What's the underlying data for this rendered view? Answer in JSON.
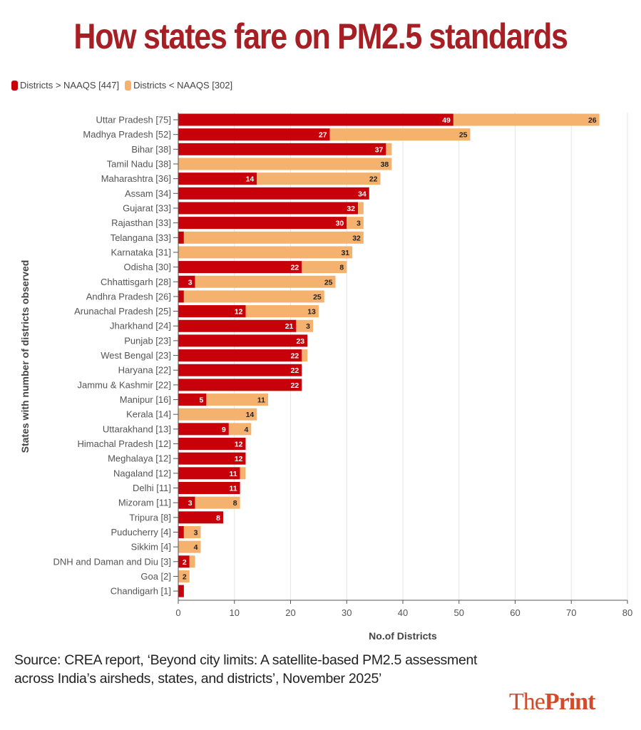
{
  "title": "How states fare on PM2.5 standards",
  "source": "Source: CREA report, ‘Beyond city limits: A satellite-based PM2.5 assessment across India’s airsheds, states, and districts’, November 2025’",
  "logo": {
    "part1": "The",
    "part2": "Print"
  },
  "colors": {
    "above": "#c8000a",
    "below": "#f5b26e",
    "title": "#a51f24"
  },
  "chart_data": {
    "type": "bar",
    "orientation": "horizontal",
    "stacked": true,
    "xlabel": "No.of Districts",
    "ylabel": "States with number of districts observed",
    "xlim": [
      0,
      80
    ],
    "xticks": [
      0,
      10,
      20,
      30,
      40,
      50,
      60,
      70,
      80
    ],
    "grid": "vertical",
    "legend_position": "top-left",
    "categories": [
      "Uttar Pradesh [75]",
      "Madhya Pradesh [52]",
      "Bihar [38]",
      "Tamil Nadu [38]",
      "Maharashtra [36]",
      "Assam [34]",
      "Gujarat [33]",
      "Rajasthan [33]",
      "Telangana [33]",
      "Karnataka [31]",
      "Odisha [30]",
      "Chhattisgarh [28]",
      "Andhra Pradesh [26]",
      "Arunachal Pradesh [25]",
      "Jharkhand [24]",
      "Punjab [23]",
      "West Bengal [23]",
      "Haryana [22]",
      "Jammu & Kashmir [22]",
      "Manipur [16]",
      "Kerala [14]",
      "Uttarakhand [13]",
      "Himachal Pradesh [12]",
      "Meghalaya [12]",
      "Nagaland [12]",
      "Delhi [11]",
      "Mizoram [11]",
      "Tripura [8]",
      "Puducherry [4]",
      "Sikkim [4]",
      "DNH and Daman and Diu [3]",
      "Goa [2]",
      "Chandigarh [1]"
    ],
    "series": [
      {
        "name": "Districts > NAAQS [447]",
        "values": [
          49,
          27,
          37,
          0,
          14,
          34,
          32,
          30,
          1,
          0,
          22,
          3,
          1,
          12,
          21,
          23,
          22,
          22,
          22,
          5,
          0,
          9,
          12,
          12,
          11,
          11,
          3,
          8,
          1,
          0,
          2,
          0,
          1
        ]
      },
      {
        "name": "Districts < NAAQS [302]",
        "values": [
          26,
          25,
          1,
          38,
          22,
          0,
          1,
          3,
          32,
          31,
          8,
          25,
          25,
          13,
          3,
          0,
          1,
          0,
          0,
          11,
          14,
          4,
          0,
          0,
          1,
          0,
          8,
          0,
          3,
          4,
          1,
          2,
          0
        ]
      }
    ]
  }
}
